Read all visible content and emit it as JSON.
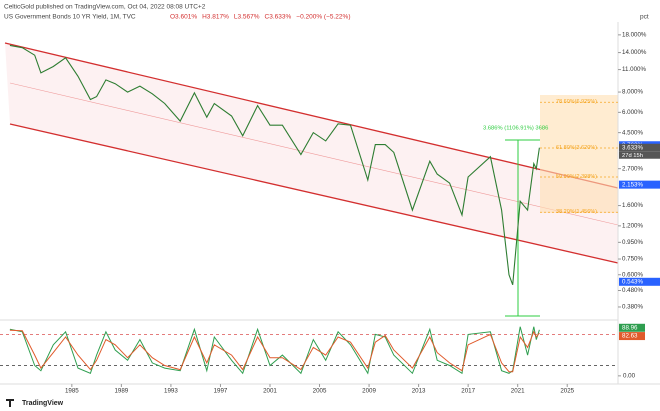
{
  "chart_data": [
    {
      "type": "line",
      "title": "US Government Bonds 10 YR Yield, 1M, TVC",
      "publisher": "CelticGold published on TradingView.com, Oct 04, 2022 08:08 UTC+2",
      "ohlc": [
        "O3.601%",
        "H3.817%",
        "L3.567%",
        "C3.633%",
        "−0.200% (−5.22%)"
      ],
      "footer": "TradingView",
      "axis_unit": "pct",
      "log_scale": true,
      "color": "#2e7d32",
      "x": [
        1980.0,
        1981.0,
        1982.0,
        1982.5,
        1983.5,
        1984.5,
        1985.5,
        1986.5,
        1987.0,
        1987.75,
        1988.5,
        1989.5,
        1990.5,
        1991.5,
        1992.5,
        1993.75,
        1994.9,
        1995.9,
        1996.5,
        1997.9,
        1998.8,
        2000.0,
        2001.0,
        2002.0,
        2003.5,
        2004.5,
        2005.5,
        2006.5,
        2007.5,
        2008.9,
        2009.5,
        2010.3,
        2011.0,
        2012.5,
        2013.9,
        2014.5,
        2015.5,
        2016.5,
        2017.0,
        2018.8,
        2019.7,
        2020.3,
        2020.6,
        2021.2,
        2021.8,
        2022.3,
        2022.5,
        2022.75
      ],
      "values": [
        15.5,
        15.0,
        13.5,
        10.5,
        11.5,
        13.0,
        10.0,
        7.2,
        7.5,
        9.5,
        9.0,
        8.0,
        8.7,
        7.8,
        6.8,
        5.3,
        7.9,
        5.6,
        6.8,
        5.7,
        4.3,
        6.6,
        5.0,
        5.0,
        3.3,
        4.5,
        4.0,
        5.1,
        5.0,
        2.3,
        3.8,
        3.8,
        3.4,
        1.5,
        3.0,
        2.5,
        2.2,
        1.4,
        2.4,
        3.2,
        1.5,
        0.6,
        0.52,
        1.7,
        1.5,
        2.9,
        2.7,
        3.633
      ],
      "xlim": [
        1979.2,
        2029.1
      ],
      "xticks": [
        1985,
        1989,
        1993,
        1997,
        2001,
        2005,
        2009,
        2013,
        2017,
        2021,
        2025
      ],
      "ylim": [
        0.325,
        21.6
      ],
      "yticks": [
        {
          "value": 18,
          "label": "18.000%"
        },
        {
          "value": 14,
          "label": "14.000%"
        },
        {
          "value": 11,
          "label": "11.000%"
        },
        {
          "value": 8,
          "label": "8.000%"
        },
        {
          "value": 6,
          "label": "6.000%"
        },
        {
          "value": 4.5,
          "label": "4.500%"
        },
        {
          "value": 2.7,
          "label": "2.700%"
        },
        {
          "value": 1.6,
          "label": "1.600%"
        },
        {
          "value": 1.2,
          "label": "1.200%"
        },
        {
          "value": 0.95,
          "label": "0.950%"
        },
        {
          "value": 0.75,
          "label": "0.750%"
        },
        {
          "value": 0.6,
          "label": "0.600%"
        },
        {
          "value": 0.48,
          "label": "0.480%"
        },
        {
          "value": 0.38,
          "label": "0.380%"
        }
      ],
      "price_tags": [
        {
          "value": 3.763,
          "label": "3.763%",
          "color": "#2962ff"
        },
        {
          "value": 3.633,
          "label": "3.633%",
          "color": "#555555"
        },
        {
          "value": 2.153,
          "label": "2.153%",
          "color": "#2962ff"
        },
        {
          "value": 0.543,
          "label": "0.543%",
          "color": "#2962ff"
        }
      ],
      "countdown": "27d 15h",
      "fib_levels": [
        {
          "value": 6.925,
          "label": "78.60%(6.925%)"
        },
        {
          "value": 3.62,
          "label": "61.80%(3.620%)"
        },
        {
          "value": 2.398,
          "label": "50.00%(2.398%)"
        },
        {
          "value": 1.456,
          "label": "38.20%(1.456%)"
        }
      ],
      "measure_label": "3.686% (1106.91%) 3686"
    },
    {
      "type": "stochastic",
      "xlim": [
        1979.2,
        2029.1
      ],
      "ylim": [
        -8,
        104
      ],
      "yticks": [
        {
          "value": 0,
          "label": "0.00"
        }
      ],
      "bands": [
        80,
        20
      ],
      "series": [
        {
          "color": "#2e9e4f",
          "values": [
            90,
            85,
            20,
            10,
            60,
            85,
            15,
            5,
            40,
            85,
            50,
            30,
            70,
            25,
            15,
            10,
            90,
            10,
            75,
            30,
            5,
            90,
            20,
            40,
            5,
            70,
            30,
            85,
            60,
            5,
            80,
            75,
            40,
            5,
            90,
            30,
            20,
            5,
            80,
            85,
            10,
            5,
            10,
            95,
            40,
            95,
            70,
            88.96
          ],
          "value_labels": [
            null,
            null,
            null,
            null,
            null,
            null,
            null,
            null,
            null,
            null,
            null,
            null,
            null,
            null,
            null,
            null,
            null,
            null,
            null,
            null,
            null,
            null,
            null,
            null,
            null,
            null,
            null,
            null,
            null,
            null,
            null,
            null,
            null,
            null,
            null,
            null,
            null,
            null,
            null,
            null,
            null,
            null,
            null,
            null,
            null,
            null,
            null,
            "88.96"
          ]
        },
        {
          "color": "#e05a2b",
          "values": [
            88,
            87,
            40,
            15,
            45,
            75,
            40,
            12,
            30,
            70,
            60,
            35,
            60,
            35,
            20,
            12,
            75,
            25,
            60,
            40,
            12,
            75,
            35,
            35,
            12,
            55,
            40,
            75,
            65,
            15,
            65,
            78,
            50,
            15,
            75,
            45,
            25,
            10,
            60,
            80,
            25,
            8,
            8,
            75,
            55,
            85,
            75,
            82.63
          ],
          "value_labels": [
            null,
            null,
            null,
            null,
            null,
            null,
            null,
            null,
            null,
            null,
            null,
            null,
            null,
            null,
            null,
            null,
            null,
            null,
            null,
            null,
            null,
            null,
            null,
            null,
            null,
            null,
            null,
            null,
            null,
            null,
            null,
            null,
            null,
            null,
            null,
            null,
            null,
            null,
            null,
            null,
            null,
            null,
            null,
            null,
            null,
            null,
            null,
            "82.63"
          ]
        }
      ]
    }
  ]
}
